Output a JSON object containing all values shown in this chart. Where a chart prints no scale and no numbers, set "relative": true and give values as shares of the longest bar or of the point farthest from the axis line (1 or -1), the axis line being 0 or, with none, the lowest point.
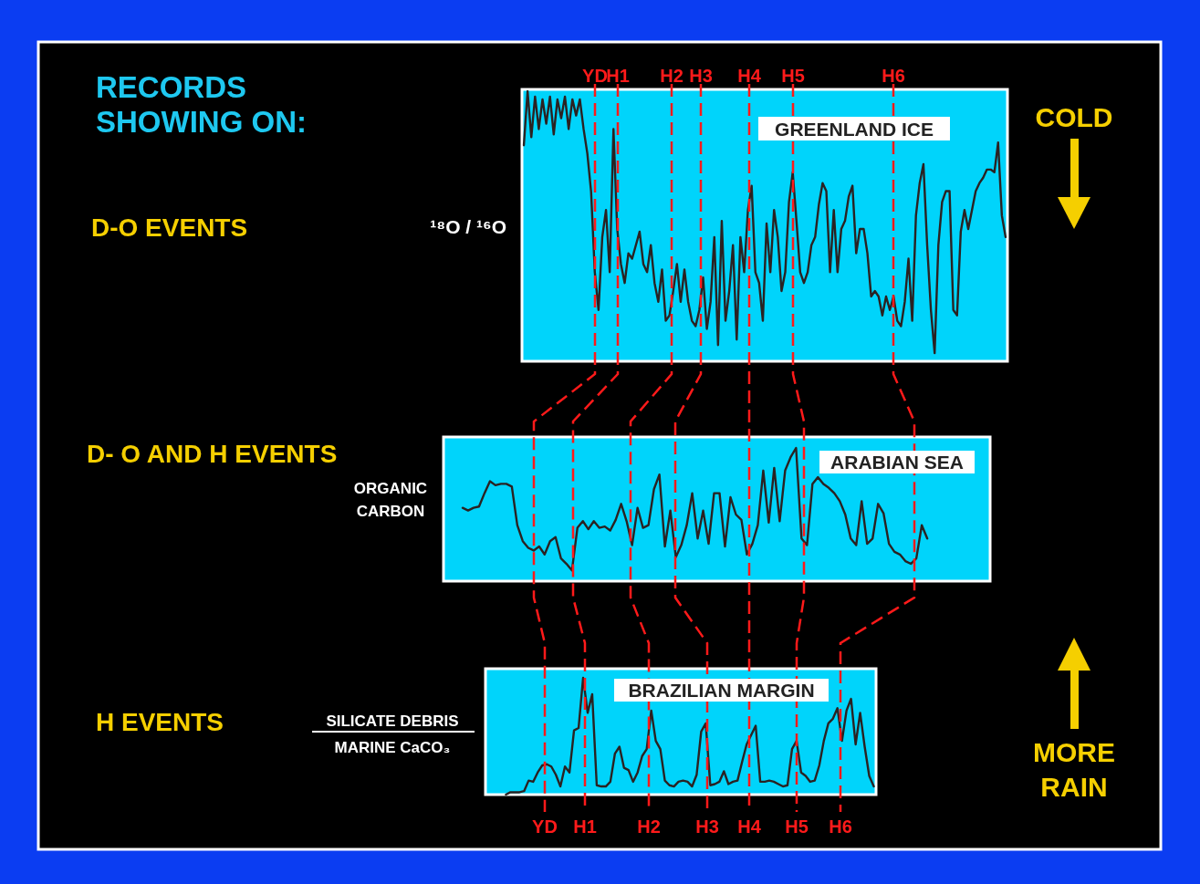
{
  "chart_data": [
    {
      "type": "line",
      "relative": true,
      "title": "GREENLAND ICE",
      "ylabel": "¹⁸O / ¹⁶O",
      "color": "#2a2222",
      "annotations": [
        "RECORDS SHOWING ON:",
        "D-O EVENTS",
        "COLD",
        "YD",
        "H1",
        "H2",
        "H3",
        "H4",
        "H5",
        "H6"
      ],
      "categories": [
        null,
        null,
        null,
        null,
        null,
        null,
        null,
        null,
        null,
        null,
        null,
        null,
        null,
        null,
        null,
        null,
        null,
        null,
        null,
        null,
        null,
        null,
        null,
        null,
        null,
        null,
        null,
        null,
        null,
        null,
        null,
        null,
        null,
        null,
        null,
        null,
        null,
        null,
        null,
        null,
        null,
        null,
        null,
        null,
        null,
        null,
        null,
        null,
        null,
        null,
        null,
        null,
        null,
        null,
        null,
        null,
        null,
        null,
        null,
        null,
        null,
        null,
        null,
        null,
        null,
        null,
        null,
        null,
        null,
        null,
        null,
        null,
        null,
        null,
        null,
        null,
        null,
        null,
        null,
        null,
        null,
        null,
        null,
        null,
        null,
        null,
        null,
        null,
        null,
        null,
        null,
        null,
        null,
        null,
        null,
        null,
        null,
        null,
        null,
        null,
        null,
        null,
        null,
        null,
        null,
        null,
        null,
        null,
        null,
        null,
        null,
        null,
        null,
        null,
        null,
        null,
        null,
        null,
        null,
        null,
        null,
        null,
        null,
        null,
        null,
        null,
        null,
        null,
        null,
        null
      ],
      "values": [
        0.8,
        1,
        0.83,
        0.98,
        0.86,
        0.97,
        0.88,
        0.98,
        0.84,
        0.97,
        0.9,
        0.98,
        0.86,
        0.97,
        0.91,
        0.97,
        0.86,
        0.77,
        0.63,
        0.33,
        0.19,
        0.46,
        0.56,
        0.33,
        0.86,
        0.49,
        0.36,
        0.29,
        0.4,
        0.38,
        0.43,
        0.48,
        0.36,
        0.33,
        0.43,
        0.29,
        0.22,
        0.34,
        0.15,
        0.17,
        0.26,
        0.36,
        0.22,
        0.34,
        0.22,
        0.15,
        0.13,
        0.19,
        0.31,
        0.12,
        0.22,
        0.46,
        0.06,
        0.52,
        0.15,
        0.26,
        0.43,
        0.08,
        0.46,
        0.33,
        0.56,
        0.65,
        0.33,
        0.29,
        0.15,
        0.51,
        0.33,
        0.56,
        0.46,
        0.26,
        0.33,
        0.59,
        0.7,
        0.52,
        0.33,
        0.29,
        0.33,
        0.43,
        0.46,
        0.58,
        0.66,
        0.63,
        0.33,
        0.56,
        0.33,
        0.49,
        0.52,
        0.61,
        0.65,
        0.4,
        0.49,
        0.49,
        0.4,
        0.24,
        0.26,
        0.24,
        0.17,
        0.24,
        0.19,
        0.24,
        0.15,
        0.13,
        0.22,
        0.38,
        0.15,
        0.54,
        0.66,
        0.73,
        0.43,
        0.19,
        0.03,
        0.43,
        0.59,
        0.63,
        0.63,
        0.19,
        0.17,
        0.48,
        0.56,
        0.49,
        0.56,
        0.63,
        0.66,
        0.68,
        0.71,
        0.71,
        0.7,
        0.81,
        0.54,
        0.46
      ]
    },
    {
      "type": "line",
      "relative": true,
      "title": "ARABIAN SEA",
      "ylabel": "ORGANIC CARBON",
      "color": "#2a2222",
      "annotations": [
        "D- O AND H EVENTS"
      ],
      "categories": [
        null,
        null,
        null,
        null,
        null,
        null,
        null,
        null,
        null,
        null,
        null,
        null,
        null,
        null,
        null,
        null,
        null,
        null,
        null,
        null,
        null,
        null,
        null,
        null,
        null,
        null,
        null,
        null,
        null,
        null,
        null,
        null,
        null,
        null,
        null,
        null,
        null,
        null,
        null,
        null,
        null,
        null,
        null,
        null,
        null,
        null,
        null,
        null,
        null,
        null,
        null,
        null,
        null,
        null,
        null,
        null,
        null,
        null,
        null,
        null,
        null,
        null,
        null,
        null,
        null,
        null,
        null,
        null,
        null,
        null,
        null,
        null,
        null,
        null,
        null,
        null,
        null,
        null,
        null,
        null,
        null,
        null,
        null,
        null,
        null,
        null,
        null,
        null,
        null,
        null,
        null,
        null,
        null,
        null,
        null,
        null,
        null,
        null,
        null,
        null
      ],
      "values": [
        null,
        null,
        null,
        0.55,
        0.53,
        0.55,
        0.56,
        0.66,
        0.75,
        0.72,
        0.73,
        0.73,
        0.71,
        0.42,
        0.3,
        0.25,
        0.23,
        0.26,
        0.2,
        0.3,
        0.33,
        0.17,
        0.13,
        0.08,
        0.4,
        0.45,
        0.39,
        0.45,
        0.4,
        0.41,
        0.38,
        0.46,
        0.58,
        0.45,
        0.27,
        0.55,
        0.4,
        0.42,
        0.69,
        0.8,
        0.26,
        0.53,
        0.18,
        0.27,
        0.42,
        0.66,
        0.32,
        0.53,
        0.28,
        0.66,
        0.66,
        0.26,
        0.63,
        0.5,
        0.46,
        0.2,
        0.28,
        0.42,
        0.83,
        0.44,
        0.85,
        0.45,
        0.83,
        0.93,
        1,
        0.32,
        0.27,
        0.73,
        0.78,
        0.73,
        0.7,
        0.66,
        0.6,
        0.5,
        0.32,
        0.27,
        0.6,
        0.28,
        0.32,
        0.58,
        0.51,
        0.28,
        0.22,
        0.2,
        0.15,
        0.13,
        0.17,
        0.42,
        0.32,
        null,
        null,
        null,
        null,
        null,
        null,
        null,
        null,
        null,
        null,
        null
      ]
    },
    {
      "type": "line",
      "relative": true,
      "title": "BRAZILIAN MARGIN",
      "ylabel": "SILICATE DEBRIS\nMARINE CaCO₃",
      "color": "#2a2222",
      "annotations": [
        "H EVENTS",
        "MORE RAIN",
        "YD",
        "H1",
        "H2",
        "H3",
        "H4",
        "H5",
        "H6"
      ],
      "categories": [
        null,
        null,
        null,
        null,
        null,
        null,
        null,
        null,
        null,
        null,
        null,
        null,
        null,
        null,
        null,
        null,
        null,
        null,
        null,
        null,
        null,
        null,
        null,
        null,
        null,
        null,
        null,
        null,
        null,
        null,
        null,
        null,
        null,
        null,
        null,
        null,
        null,
        null,
        null,
        null,
        null,
        null,
        null,
        null,
        null,
        null,
        null,
        null,
        null,
        null,
        null,
        null,
        null,
        null,
        null,
        null,
        null,
        null,
        null,
        null,
        null,
        null,
        null,
        null,
        null,
        null,
        null,
        null,
        null,
        null,
        null,
        null,
        null,
        null,
        null,
        null,
        null,
        null,
        null,
        null,
        null,
        null,
        null,
        null,
        null,
        null
      ],
      "values": [
        null,
        null,
        null,
        null,
        0,
        0.02,
        0.02,
        0.02,
        0.03,
        0.12,
        0.11,
        0.19,
        0.25,
        0.26,
        0.24,
        0.17,
        0.07,
        0.24,
        0.19,
        0.55,
        0.57,
        1,
        0.7,
        0.86,
        0.08,
        0.07,
        0.07,
        0.11,
        0.35,
        0.41,
        0.23,
        0.21,
        0.11,
        0.19,
        0.33,
        0.39,
        0.72,
        0.46,
        0.39,
        0.12,
        0.08,
        0.07,
        0.11,
        0.12,
        0.11,
        0.07,
        0.17,
        0.54,
        0.61,
        0.08,
        0.09,
        0.11,
        0.2,
        0.09,
        0.11,
        0.12,
        0.28,
        0.43,
        0.51,
        0.59,
        0.11,
        0.11,
        0.12,
        0.11,
        0.09,
        0.07,
        0.08,
        0.39,
        0.46,
        0.19,
        0.16,
        0.11,
        0.12,
        0.25,
        0.46,
        0.61,
        0.65,
        0.74,
        0.46,
        0.72,
        0.82,
        0.43,
        0.7,
        0.41,
        0.16,
        0.07
      ]
    }
  ]
}
